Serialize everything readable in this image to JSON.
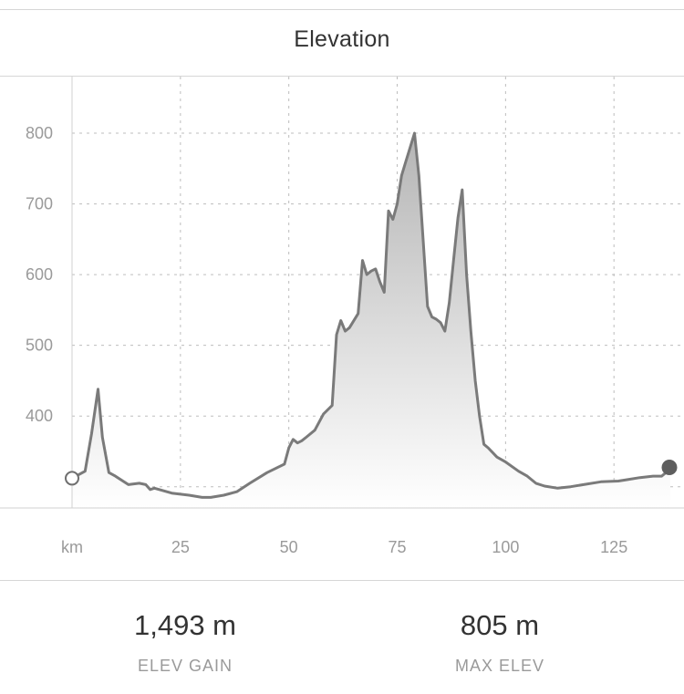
{
  "header": {
    "title": "Elevation"
  },
  "chart_data": {
    "type": "area",
    "title": "",
    "xlabel": "km",
    "ylabel": "",
    "xlim": [
      0,
      138
    ],
    "ylim": [
      270,
      880
    ],
    "x_ticks": [
      25,
      50,
      75,
      100,
      125
    ],
    "y_ticks": [
      400,
      500,
      600,
      700,
      800
    ],
    "grid": true,
    "x": [
      0,
      3,
      4.5,
      6,
      7,
      8.5,
      10,
      13,
      15.5,
      17,
      18,
      19,
      23,
      27,
      30,
      32,
      35,
      38,
      41,
      45,
      49,
      50,
      51,
      52,
      53,
      54,
      56,
      58,
      60,
      61,
      62,
      63,
      64,
      66,
      67,
      68,
      69,
      70,
      71,
      72,
      73,
      74,
      75,
      76,
      77,
      78,
      79,
      80,
      82,
      83,
      84,
      85,
      86,
      87,
      88,
      89,
      90,
      91,
      92,
      93,
      94,
      95,
      96,
      98,
      100,
      103,
      105,
      107,
      109,
      112,
      115,
      118,
      122,
      126,
      128,
      131,
      134,
      136,
      137,
      138
    ],
    "values": [
      312,
      322,
      375,
      438,
      370,
      320,
      315,
      303,
      305,
      303,
      296,
      298,
      291,
      288,
      285,
      285,
      288,
      293,
      305,
      320,
      332,
      355,
      367,
      362,
      365,
      370,
      380,
      403,
      415,
      515,
      535,
      520,
      525,
      545,
      620,
      600,
      605,
      608,
      590,
      575,
      690,
      678,
      700,
      740,
      760,
      780,
      800,
      740,
      555,
      540,
      537,
      532,
      520,
      560,
      620,
      680,
      720,
      600,
      520,
      450,
      400,
      360,
      355,
      342,
      335,
      322,
      315,
      305,
      301,
      298,
      300,
      303,
      307,
      308,
      310,
      313,
      315,
      315,
      320,
      330
    ],
    "start_marker": "open-circle",
    "end_marker": "filled-circle",
    "line_color": "#7a7a7a",
    "fill_color_top": "#b5b5b5",
    "fill_color_bottom": "#ffffff",
    "grid_color": "#bdbdbd"
  },
  "stats": [
    {
      "value": "1,493 m",
      "label": "ELEV GAIN"
    },
    {
      "value": "805 m",
      "label": "MAX ELEV"
    }
  ]
}
